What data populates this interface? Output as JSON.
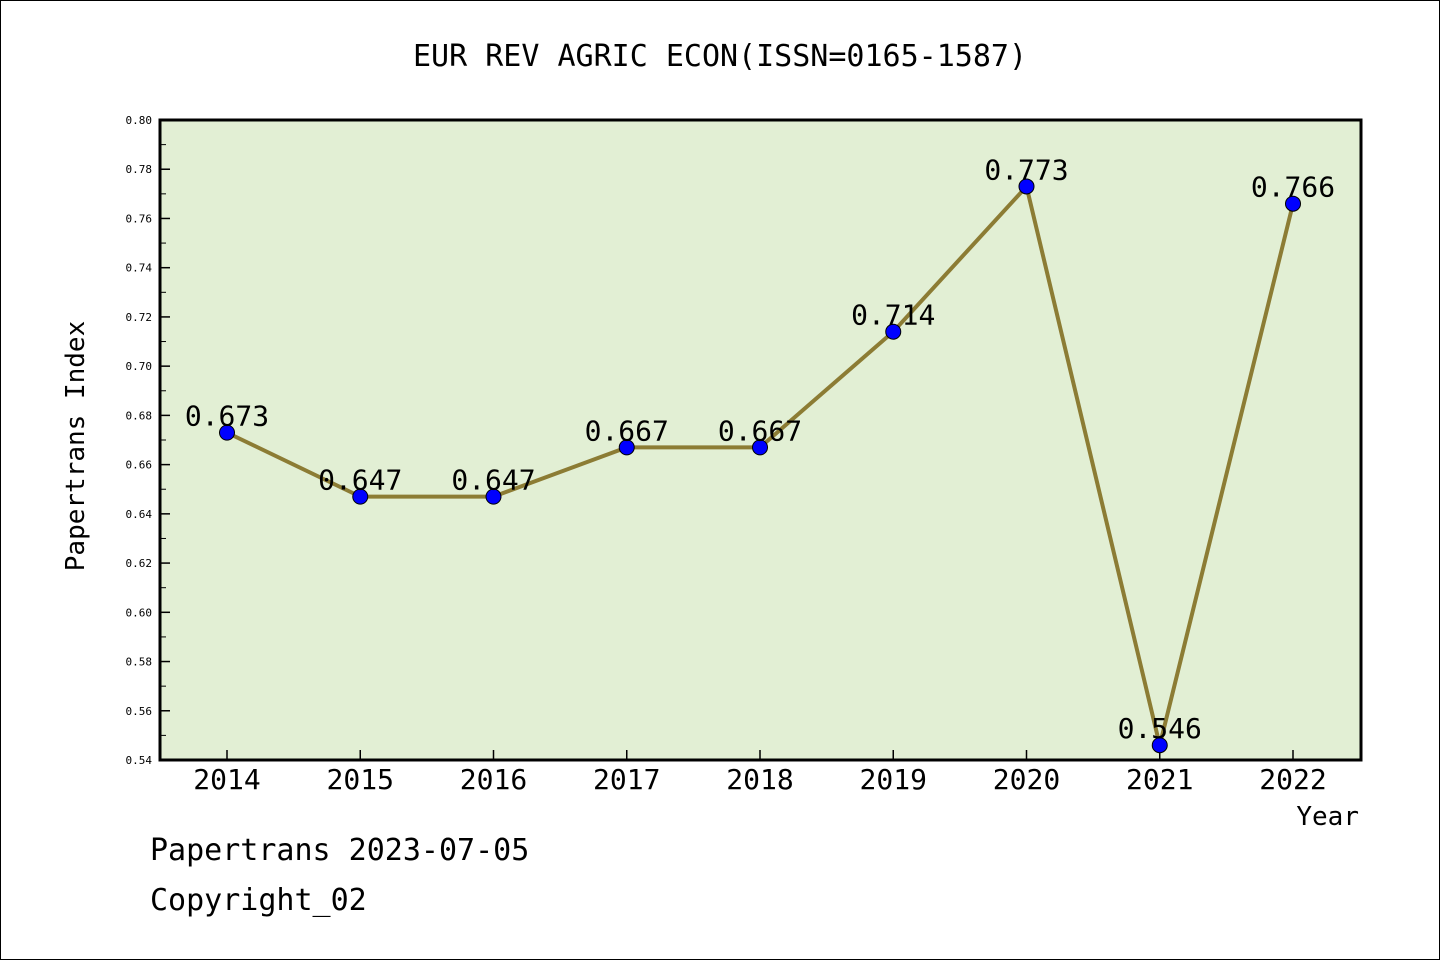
{
  "chart_data": {
    "type": "line",
    "title": "EUR REV AGRIC ECON(ISSN=0165-1587)",
    "xlabel": "Year",
    "ylabel": "Papertrans Index",
    "categories": [
      "2014",
      "2015",
      "2016",
      "2017",
      "2018",
      "2019",
      "2020",
      "2021",
      "2022"
    ],
    "values": [
      0.673,
      0.647,
      0.647,
      0.667,
      0.667,
      0.714,
      0.773,
      0.546,
      0.766
    ],
    "data_labels": [
      "0.673",
      "0.647",
      "0.647",
      "0.667",
      "0.667",
      "0.714",
      "0.773",
      "0.546",
      "0.766"
    ],
    "ylim": [
      0.54,
      0.8
    ],
    "yticks": [
      "0.54",
      "0.56",
      "0.58",
      "0.60",
      "0.62",
      "0.64",
      "0.66",
      "0.68",
      "0.70",
      "0.72",
      "0.74",
      "0.76",
      "0.78",
      "0.80"
    ],
    "grid": false,
    "colors": {
      "plot_background": "#e2efd4",
      "line": "#8c7c34",
      "marker": "#0000ff"
    }
  },
  "footer": {
    "date_label": "Papertrans 2023-07-05",
    "copyright_label": "Copyright_02"
  }
}
